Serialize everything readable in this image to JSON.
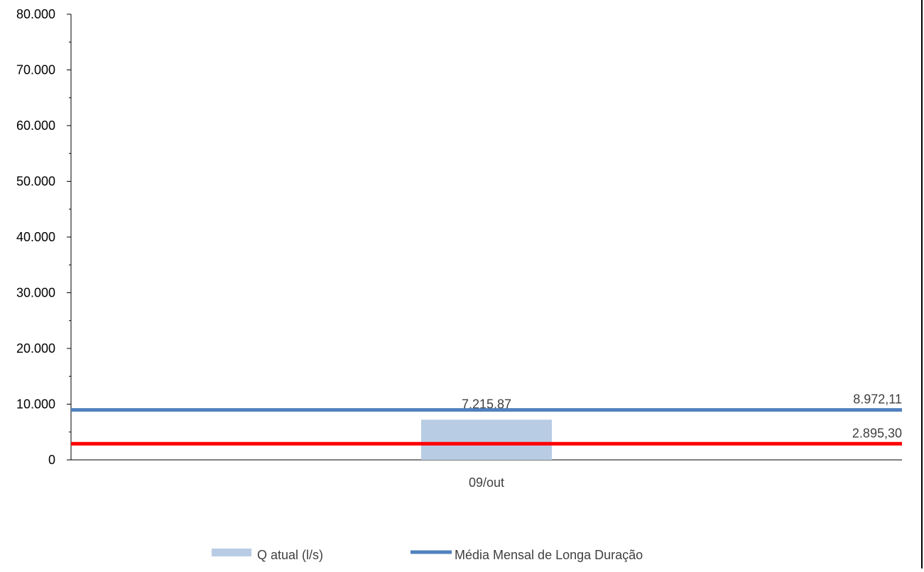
{
  "chart_data": {
    "type": "bar",
    "categories": [
      "09/out"
    ],
    "ylim": [
      0,
      80000
    ],
    "yticks": [
      0,
      10000,
      20000,
      30000,
      40000,
      50000,
      60000,
      70000,
      80000
    ],
    "ytick_labels": [
      "0",
      "10.000",
      "20.000",
      "30.000",
      "40.000",
      "50.000",
      "60.000",
      "70.000",
      "80.000"
    ],
    "series": [
      {
        "name": "Q atual (l/s)",
        "kind": "bar",
        "values": [
          7215.87
        ],
        "label": "7.215,87",
        "color": "#b8cce4"
      },
      {
        "name": "Média Mensal de Longa Duração",
        "kind": "hline",
        "value": 8972.11,
        "label": "8.972,11",
        "color": "#4f81bd"
      },
      {
        "kind": "hline",
        "value": 2895.3,
        "label": "2.895,30",
        "color": "#ff0000"
      }
    ],
    "legend": {
      "position": "bottom",
      "entries": [
        "Q atual (l/s)",
        "Média Mensal de Longa Duração"
      ]
    },
    "grid": false
  }
}
